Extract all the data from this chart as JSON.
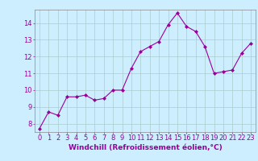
{
  "x": [
    0,
    1,
    2,
    3,
    4,
    5,
    6,
    7,
    8,
    9,
    10,
    11,
    12,
    13,
    14,
    15,
    16,
    17,
    18,
    19,
    20,
    21,
    22,
    23
  ],
  "y": [
    7.7,
    8.7,
    8.5,
    9.6,
    9.6,
    9.7,
    9.4,
    9.5,
    10.0,
    10.0,
    11.3,
    12.3,
    12.6,
    12.9,
    13.9,
    14.6,
    13.8,
    13.5,
    12.6,
    11.0,
    11.1,
    11.2,
    12.2,
    12.8
  ],
  "line_color": "#990099",
  "marker": "D",
  "marker_size": 2.0,
  "bg_color": "#cceeff",
  "grid_color": "#aacccc",
  "xlabel": "Windchill (Refroidissement éolien,°C)",
  "ylabel_ticks": [
    8,
    9,
    10,
    11,
    12,
    13,
    14
  ],
  "xtick_labels": [
    "0",
    "1",
    "2",
    "3",
    "4",
    "5",
    "6",
    "7",
    "8",
    "9",
    "10",
    "11",
    "12",
    "13",
    "14",
    "15",
    "16",
    "17",
    "18",
    "19",
    "20",
    "21",
    "22",
    "23"
  ],
  "xlim": [
    -0.5,
    23.5
  ],
  "ylim": [
    7.5,
    14.8
  ],
  "tick_color": "#990099",
  "label_color": "#990099",
  "label_fontsize": 6.5,
  "tick_fontsize": 6.0
}
